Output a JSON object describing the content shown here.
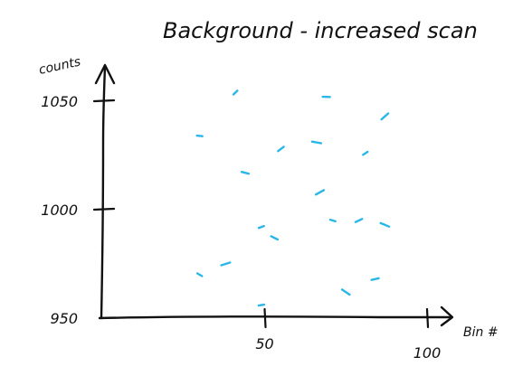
{
  "chart_data": {
    "type": "scatter",
    "title": "Background - increased scan",
    "xlabel": "Bin #",
    "ylabel": "counts",
    "xlim": [
      0,
      100
    ],
    "ylim": [
      950,
      1050
    ],
    "x_ticks": [
      50,
      100
    ],
    "x_tick_labels": [
      "50",
      "100"
    ],
    "y_ticks": [
      950,
      1000,
      1050
    ],
    "y_tick_labels": [
      "950",
      "1000",
      "1050"
    ],
    "grid": false,
    "marker_color": "#29b6e8",
    "points": [
      {
        "x": 41,
        "y": 1054
      },
      {
        "x": 69,
        "y": 1052
      },
      {
        "x": 87,
        "y": 1043
      },
      {
        "x": 30,
        "y": 1034
      },
      {
        "x": 55,
        "y": 1028
      },
      {
        "x": 66,
        "y": 1031
      },
      {
        "x": 81,
        "y": 1026
      },
      {
        "x": 44,
        "y": 1017
      },
      {
        "x": 67,
        "y": 1008
      },
      {
        "x": 71,
        "y": 995
      },
      {
        "x": 79,
        "y": 995
      },
      {
        "x": 87,
        "y": 993
      },
      {
        "x": 49,
        "y": 992
      },
      {
        "x": 53,
        "y": 987
      },
      {
        "x": 38,
        "y": 975
      },
      {
        "x": 30,
        "y": 970
      },
      {
        "x": 84,
        "y": 968
      },
      {
        "x": 75,
        "y": 962
      },
      {
        "x": 49,
        "y": 956
      }
    ]
  }
}
